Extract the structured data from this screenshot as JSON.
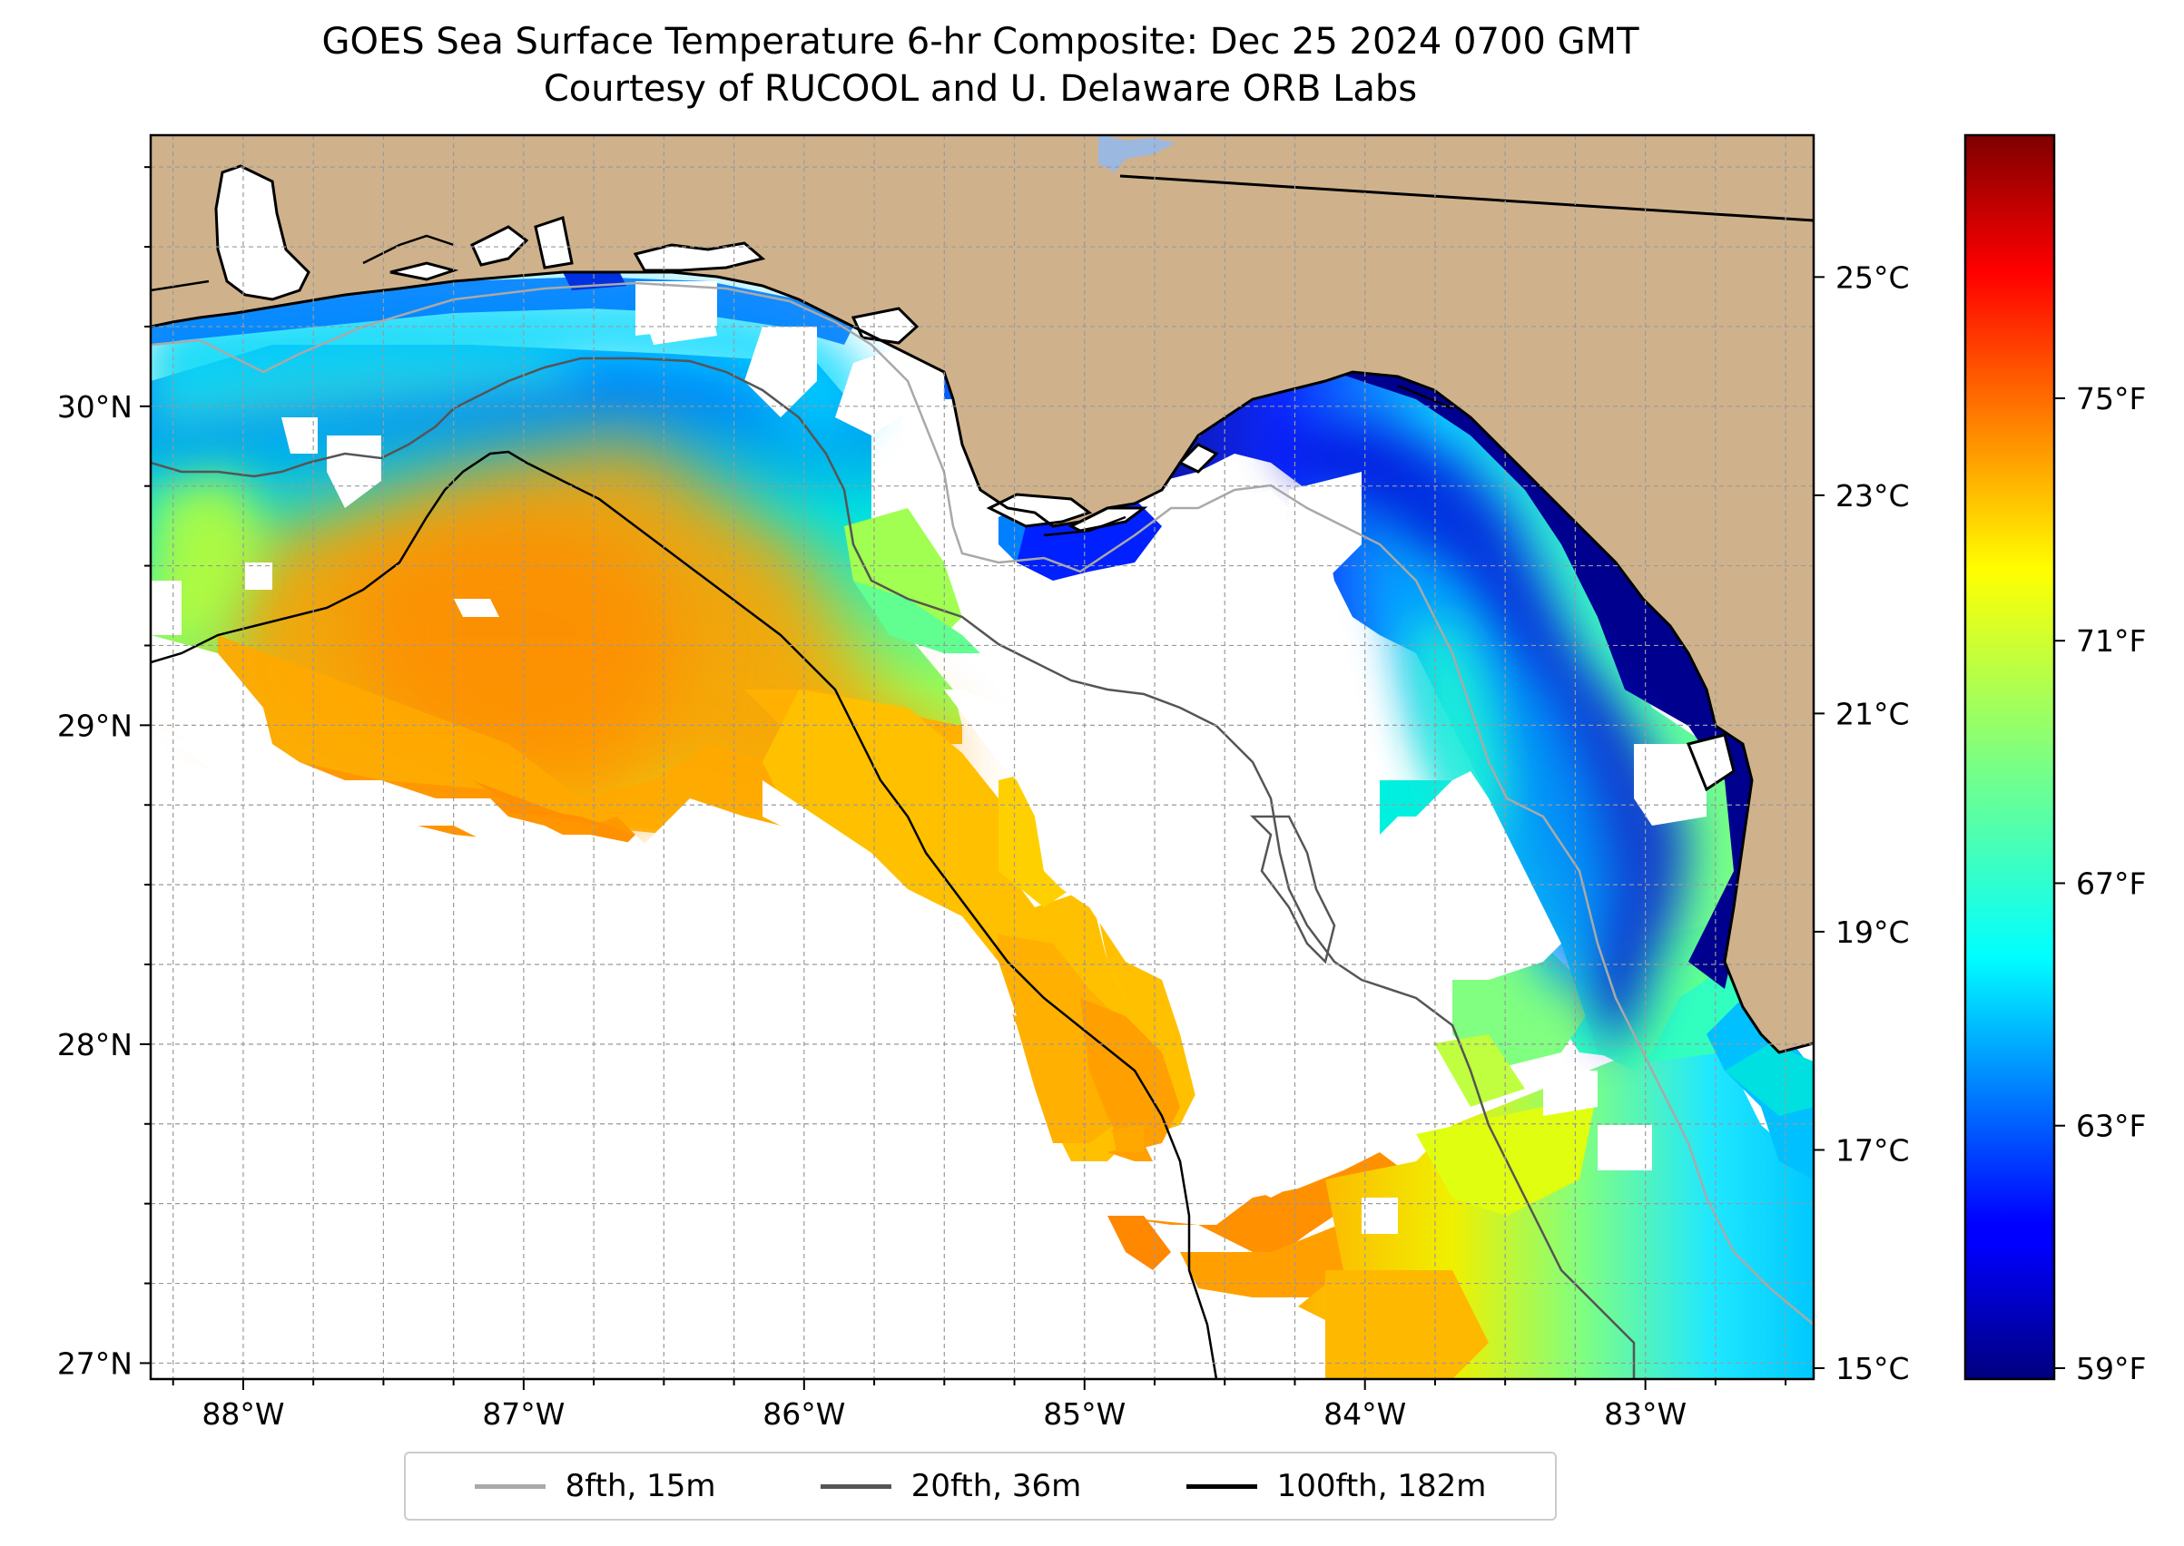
{
  "title_line1": "GOES Sea Surface Temperature 6-hr Composite: Dec 25 2024 0700 GMT",
  "title_line2": "Courtesy of RUCOOL and U. Delaware ORB Labs",
  "map": {
    "lon_range": [
      -88.33,
      -82.4
    ],
    "lat_range": [
      26.95,
      30.85
    ],
    "lon_ticks": [
      {
        "value": -88,
        "label": "88°W"
      },
      {
        "value": -87,
        "label": "87°W"
      },
      {
        "value": -86,
        "label": "86°W"
      },
      {
        "value": -85,
        "label": "85°W"
      },
      {
        "value": -84,
        "label": "84°W"
      },
      {
        "value": -83,
        "label": "83°W"
      }
    ],
    "lat_ticks": [
      {
        "value": 27,
        "label": "27°N"
      },
      {
        "value": 28,
        "label": "28°N"
      },
      {
        "value": 29,
        "label": "29°N"
      },
      {
        "value": 30,
        "label": "30°N"
      }
    ],
    "colors": {
      "land": "#cfb28b",
      "missing": "#ffffff",
      "grid": "#9a9a9a"
    }
  },
  "colorbar": {
    "colormap": "jet",
    "range_c": [
      14.9,
      26.3
    ],
    "celsius_ticks": [
      {
        "value": 15,
        "label": "15°C"
      },
      {
        "value": 17,
        "label": "17°C"
      },
      {
        "value": 19,
        "label": "19°C"
      },
      {
        "value": 21,
        "label": "21°C"
      },
      {
        "value": 23,
        "label": "23°C"
      },
      {
        "value": 25,
        "label": "25°C"
      }
    ],
    "fahrenheit_ticks": [
      {
        "value": 59,
        "label": "59°F"
      },
      {
        "value": 63,
        "label": "63°F"
      },
      {
        "value": 67,
        "label": "67°F"
      },
      {
        "value": 71,
        "label": "71°F"
      },
      {
        "value": 75,
        "label": "75°F"
      }
    ]
  },
  "legend": [
    {
      "label": "8fth, 15m",
      "color": "#a9a9a9"
    },
    {
      "label": "20fth, 36m",
      "color": "#555555"
    },
    {
      "label": "100fth, 182m",
      "color": "#000000"
    }
  ]
}
